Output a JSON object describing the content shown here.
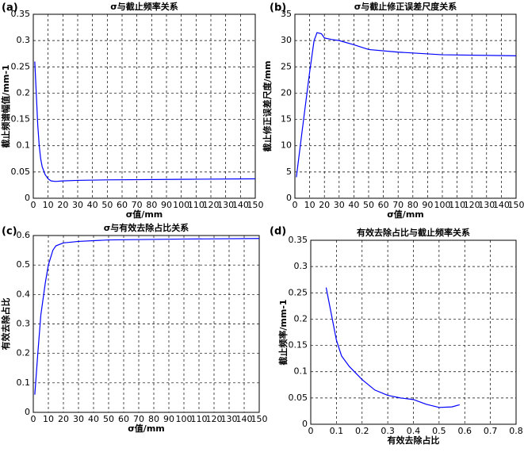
{
  "chart_data": [
    {
      "type": "line",
      "panel": "(a)",
      "title": "σ与截止频率关系",
      "xlabel": "σ值/mm",
      "ylabel": "截止频谱幅值/mm-1",
      "x": [
        1,
        2,
        3,
        4,
        5,
        6,
        8,
        10,
        12,
        15,
        20,
        30,
        50,
        100,
        150
      ],
      "values": [
        0.26,
        0.2,
        0.14,
        0.1,
        0.075,
        0.06,
        0.045,
        0.037,
        0.033,
        0.032,
        0.033,
        0.034,
        0.035,
        0.036,
        0.037
      ],
      "color": "#0000ff",
      "xlim": [
        0,
        150
      ],
      "ylim": [
        0,
        0.35
      ],
      "xticks": [
        0,
        10,
        20,
        30,
        40,
        50,
        60,
        70,
        80,
        90,
        100,
        110,
        120,
        130,
        140,
        150
      ],
      "yticks": [
        0,
        0.05,
        0.1,
        0.15,
        0.2,
        0.25,
        0.3,
        0.35
      ],
      "grid": true
    },
    {
      "type": "line",
      "panel": "(b)",
      "title": "σ与截止修正误差尺度关系",
      "xlabel": "σ值/mm",
      "ylabel": "截止修正误差尺度/mm",
      "x": [
        1,
        5,
        10,
        13,
        15,
        18,
        20,
        25,
        30,
        40,
        50,
        70,
        100,
        150
      ],
      "values": [
        4,
        13,
        24,
        30,
        31.5,
        31.3,
        30.5,
        30.2,
        30,
        29.2,
        28.3,
        27.8,
        27.3,
        27.1
      ],
      "color": "#0000ff",
      "xlim": [
        0,
        150
      ],
      "ylim": [
        0,
        35
      ],
      "xticks": [
        0,
        10,
        20,
        30,
        40,
        50,
        60,
        70,
        80,
        90,
        100,
        110,
        120,
        130,
        140,
        150
      ],
      "yticks": [
        0,
        5,
        10,
        15,
        20,
        25,
        30,
        35
      ],
      "grid": true
    },
    {
      "type": "line",
      "panel": "(c)",
      "title": "σ与有效去除占比关系",
      "xlabel": "σ值/mm",
      "ylabel": "有效去除占比",
      "x": [
        1,
        3,
        5,
        8,
        10,
        13,
        15,
        20,
        30,
        50,
        100,
        150
      ],
      "values": [
        0.06,
        0.2,
        0.33,
        0.44,
        0.5,
        0.55,
        0.565,
        0.575,
        0.58,
        0.585,
        0.588,
        0.59
      ],
      "color": "#0000ff",
      "xlim": [
        0,
        150
      ],
      "ylim": [
        0,
        0.6
      ],
      "xticks": [
        0,
        10,
        20,
        30,
        40,
        50,
        60,
        70,
        80,
        90,
        100,
        110,
        120,
        130,
        140,
        150
      ],
      "yticks": [
        0,
        0.1,
        0.2,
        0.3,
        0.4,
        0.5,
        0.6
      ],
      "grid": true
    },
    {
      "type": "line",
      "panel": "(d)",
      "title": "有效去除占比与截止频率关系",
      "xlabel": "有效去除占比",
      "ylabel": "截止频率/mm-1",
      "x": [
        0.06,
        0.1,
        0.12,
        0.15,
        0.2,
        0.25,
        0.3,
        0.35,
        0.4,
        0.45,
        0.5,
        0.55,
        0.58
      ],
      "values": [
        0.26,
        0.16,
        0.13,
        0.11,
        0.085,
        0.065,
        0.055,
        0.05,
        0.047,
        0.038,
        0.032,
        0.033,
        0.037
      ],
      "color": "#0000ff",
      "xlim": [
        0,
        0.8
      ],
      "ylim": [
        0,
        0.35
      ],
      "xticks": [
        0,
        0.1,
        0.2,
        0.3,
        0.4,
        0.5,
        0.6,
        0.7,
        0.8
      ],
      "yticks": [
        0,
        0.05,
        0.1,
        0.15,
        0.2,
        0.25,
        0.3,
        0.35
      ],
      "grid": true
    }
  ]
}
